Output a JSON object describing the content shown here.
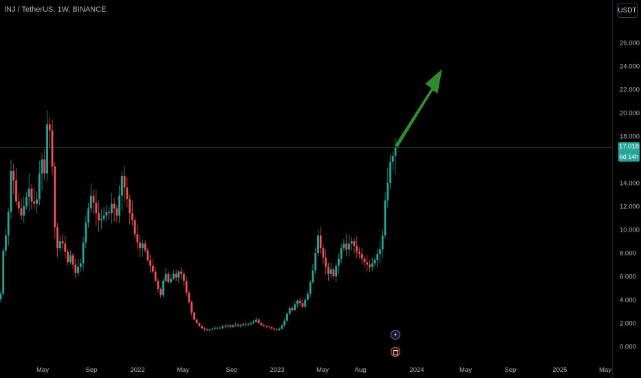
{
  "header": {
    "symbol": "INJ / TetherUS",
    "interval": "1W",
    "exchange": "BINANCE"
  },
  "currency_button": "USDT",
  "price_label": {
    "value": "17.018",
    "countdown": "6d 14h"
  },
  "colors": {
    "up": "#26a69a",
    "down": "#ef5350",
    "arrow": "#2e8b2e",
    "background": "#000000",
    "price_line": "#26a69a"
  },
  "markers": [
    "lightning-icon",
    "calendar-icon"
  ],
  "chart_data": {
    "type": "candlestick",
    "interval": "1W",
    "y_ticks": [
      "0.000",
      "2.000",
      "4.000",
      "6.000",
      "8.000",
      "10.000",
      "12.000",
      "14.000",
      "16.000",
      "18.000",
      "20.000",
      "22.000",
      "24.000",
      "26.000"
    ],
    "x_ticks": [
      "May",
      "Sep",
      "2022",
      "May",
      "Sep",
      "2023",
      "May",
      "Aug",
      "2024",
      "May",
      "Sep",
      "2025",
      "May"
    ],
    "ylim": [
      -0.5,
      27.5
    ],
    "last_price": 17.018,
    "annotation": "upward arrow",
    "closes": [
      4.5,
      8.2,
      9.5,
      11.5,
      15.0,
      14.2,
      12.4,
      11.8,
      11.2,
      12.0,
      12.8,
      13.5,
      12.4,
      12.2,
      12.6,
      14.8,
      16.0,
      14.8,
      19.0,
      18.5,
      15.4,
      10.2,
      8.4,
      9.0,
      8.8,
      8.1,
      7.2,
      7.8,
      7.0,
      6.3,
      6.8,
      7.1,
      8.9,
      10.6,
      11.8,
      12.9,
      12.3,
      11.4,
      10.8,
      10.9,
      11.2,
      11.5,
      11.4,
      12.2,
      11.8,
      11.2,
      12.9,
      14.6,
      13.6,
      12.6,
      11.4,
      10.8,
      9.6,
      8.9,
      8.4,
      8.8,
      8.2,
      7.4,
      6.9,
      6.4,
      5.6,
      4.9,
      4.4,
      5.6,
      6.2,
      5.5,
      5.8,
      6.2,
      5.9,
      6.4,
      6.2,
      5.6,
      4.6,
      3.8,
      2.9,
      2.3,
      2.0,
      1.75,
      1.55,
      1.45,
      1.4,
      1.45,
      1.5,
      1.6,
      1.55,
      1.6,
      1.7,
      1.75,
      1.8,
      1.65,
      1.8,
      1.85,
      1.75,
      1.8,
      1.9,
      1.85,
      1.95,
      2.0,
      2.1,
      2.3,
      2.0,
      1.8,
      1.75,
      1.7,
      1.65,
      1.55,
      1.45,
      1.4,
      1.5,
      1.8,
      2.2,
      2.8,
      3.3,
      3.1,
      3.6,
      3.9,
      3.7,
      3.4,
      4.0,
      4.5,
      5.5,
      6.5,
      8.0,
      9.5,
      8.4,
      7.6,
      6.8,
      6.2,
      6.6,
      6.0,
      6.9,
      7.5,
      8.4,
      8.8,
      8.3,
      8.8,
      9.0,
      8.6,
      8.1,
      7.9,
      7.5,
      7.2,
      7.0,
      6.8,
      7.1,
      7.4,
      7.9,
      8.3,
      9.5,
      12.5,
      14.0,
      15.8,
      16.3,
      17.018
    ]
  }
}
